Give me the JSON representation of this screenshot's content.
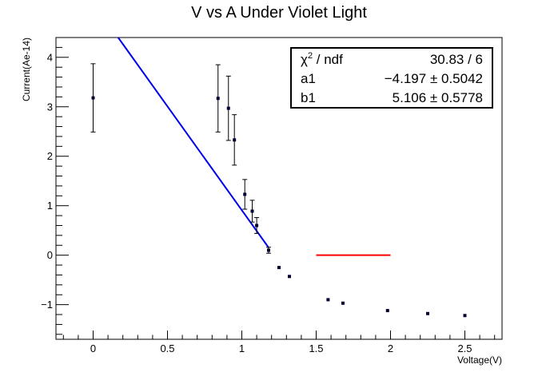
{
  "chart_data": {
    "type": "scatter",
    "title": "V vs A Under Violet Light",
    "xlabel": "Voltage(V)",
    "ylabel": "Current(Ae-14)",
    "xlim": [
      -0.25,
      2.75
    ],
    "ylim": [
      -1.7,
      4.4
    ],
    "x_ticks": [
      0,
      0.5,
      1,
      1.5,
      2,
      2.5
    ],
    "x_tick_labels": [
      "0",
      "0.5",
      "1",
      "1.5",
      "2",
      "2.5"
    ],
    "y_ticks": [
      -1,
      0,
      1,
      2,
      3,
      4
    ],
    "y_tick_labels": [
      "−1",
      "0",
      "1",
      "2",
      "3",
      "4"
    ],
    "grid": false,
    "points": [
      {
        "x": 0.0,
        "y": 3.18,
        "err": 0.69
      },
      {
        "x": 0.84,
        "y": 3.17,
        "err": 0.68
      },
      {
        "x": 0.91,
        "y": 2.97,
        "err": 0.65
      },
      {
        "x": 0.95,
        "y": 2.33,
        "err": 0.51
      },
      {
        "x": 1.02,
        "y": 1.23,
        "err": 0.3
      },
      {
        "x": 1.07,
        "y": 0.89,
        "err": 0.22
      },
      {
        "x": 1.1,
        "y": 0.6,
        "err": 0.16
      },
      {
        "x": 1.18,
        "y": 0.1,
        "err": 0.06
      },
      {
        "x": 1.25,
        "y": -0.25,
        "err": 0.0
      },
      {
        "x": 1.32,
        "y": -0.43,
        "err": 0.0
      },
      {
        "x": 1.58,
        "y": -0.9,
        "err": 0.0
      },
      {
        "x": 1.68,
        "y": -0.97,
        "err": 0.0
      },
      {
        "x": 1.98,
        "y": -1.12,
        "err": 0.0
      },
      {
        "x": 2.25,
        "y": -1.18,
        "err": 0.0
      },
      {
        "x": 2.5,
        "y": -1.22,
        "err": 0.0
      }
    ],
    "fit_line": {
      "color": "#0000ee",
      "x_start": 0.0,
      "x_end": 1.18,
      "a1": -4.197,
      "b1": 5.106
    },
    "reference_line": {
      "color": "#ff0000",
      "x_start": 1.5,
      "x_end": 2.0,
      "y": 0.0
    },
    "stats_box": {
      "rows": [
        {
          "label_main": "χ",
          "label_sup": "2",
          "label_rest": " / ndf",
          "value": "30.83 / 6"
        },
        {
          "label_main": "a1",
          "label_sup": "",
          "label_rest": "",
          "value": "−4.197 ± 0.5042"
        },
        {
          "label_main": "b1",
          "label_sup": "",
          "label_rest": "",
          "value": "5.106 ± 0.5778"
        }
      ]
    }
  }
}
